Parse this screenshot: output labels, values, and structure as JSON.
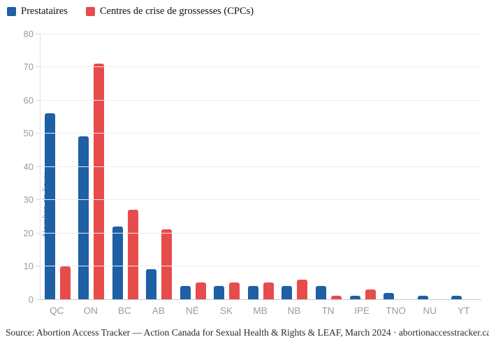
{
  "legend": {
    "items": [
      {
        "label": "Prestataires",
        "color": "#1e5fa5",
        "icon": "blue-square-swatch"
      },
      {
        "label": "Centres de crise de grossesses (CPCs)",
        "color": "#e74c4c",
        "icon": "red-square-swatch"
      }
    ]
  },
  "chart_data": {
    "type": "bar",
    "title": "",
    "categories": [
      "QC",
      "ON",
      "BC",
      "AB",
      "NÉ",
      "SK",
      "MB",
      "NB",
      "TN",
      "IPE",
      "TNO",
      "NU",
      "YT"
    ],
    "series": [
      {
        "name": "Prestataires",
        "color": "#1e5fa5",
        "values": [
          56,
          49,
          22,
          9,
          4,
          4,
          4,
          4,
          4,
          1,
          2,
          1,
          1
        ]
      },
      {
        "name": "Centres de crise de grossesses (CPCs)",
        "color": "#e74c4c",
        "values": [
          10,
          71,
          27,
          21,
          5,
          5,
          5,
          6,
          1,
          3,
          0,
          0,
          0
        ]
      }
    ],
    "xlabel": "",
    "ylabel": "Nombre de lieux",
    "ylim": [
      0,
      80
    ],
    "yticks": [
      0,
      10,
      20,
      30,
      40,
      50,
      60,
      70,
      80
    ],
    "grid": true,
    "legend_position": "top-left",
    "colors": {
      "gridline": "#ececec",
      "axis_line": "#e2e2e2",
      "baseline": "#c9c9c9",
      "tick_label": "#9b9b9b",
      "axis_title": "#8b8b8b"
    }
  },
  "footer": {
    "source_text": "Source: Abortion Access Tracker — Action Canada for Sexual Health & Rights & LEAF, March 2024 · abortionaccesstracker.ca"
  }
}
